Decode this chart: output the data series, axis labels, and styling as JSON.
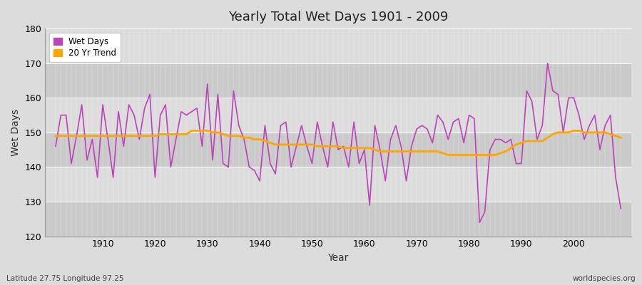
{
  "title": "Yearly Total Wet Days 1901 - 2009",
  "xlabel": "Year",
  "ylabel": "Wet Days",
  "lat_lon_label": "Latitude 27.75 Longitude 97.25",
  "watermark": "worldspecies.org",
  "wet_days_color": "#BB44BB",
  "trend_color": "#FFA500",
  "bg_color": "#DCDCDC",
  "band_light": "#DCDCDC",
  "band_dark": "#CACACA",
  "ylim": [
    120,
    180
  ],
  "yticks": [
    120,
    130,
    140,
    150,
    160,
    170,
    180
  ],
  "years": [
    1901,
    1902,
    1903,
    1904,
    1905,
    1906,
    1907,
    1908,
    1909,
    1910,
    1911,
    1912,
    1913,
    1914,
    1915,
    1916,
    1917,
    1918,
    1919,
    1920,
    1921,
    1922,
    1923,
    1924,
    1925,
    1926,
    1927,
    1928,
    1929,
    1930,
    1931,
    1932,
    1933,
    1934,
    1935,
    1936,
    1937,
    1938,
    1939,
    1940,
    1941,
    1942,
    1943,
    1944,
    1945,
    1946,
    1947,
    1948,
    1949,
    1950,
    1951,
    1952,
    1953,
    1954,
    1955,
    1956,
    1957,
    1958,
    1959,
    1960,
    1961,
    1962,
    1963,
    1964,
    1965,
    1966,
    1967,
    1968,
    1969,
    1970,
    1971,
    1972,
    1973,
    1974,
    1975,
    1976,
    1977,
    1978,
    1979,
    1980,
    1981,
    1982,
    1983,
    1984,
    1985,
    1986,
    1987,
    1988,
    1989,
    1990,
    1991,
    1992,
    1993,
    1994,
    1995,
    1996,
    1997,
    1998,
    1999,
    2000,
    2001,
    2002,
    2003,
    2004,
    2005,
    2006,
    2007,
    2008,
    2009
  ],
  "wet_days": [
    146,
    155,
    155,
    141,
    149,
    158,
    142,
    148,
    137,
    158,
    148,
    137,
    156,
    146,
    158,
    155,
    148,
    157,
    161,
    137,
    155,
    158,
    140,
    148,
    156,
    155,
    156,
    157,
    146,
    164,
    142,
    161,
    141,
    140,
    162,
    152,
    148,
    140,
    139,
    136,
    152,
    141,
    138,
    152,
    153,
    140,
    146,
    152,
    146,
    141,
    153,
    146,
    140,
    153,
    145,
    146,
    140,
    153,
    141,
    145,
    129,
    152,
    145,
    136,
    148,
    152,
    146,
    136,
    146,
    151,
    152,
    151,
    147,
    155,
    153,
    148,
    153,
    154,
    147,
    155,
    154,
    124,
    127,
    145,
    148,
    148,
    147,
    148,
    141,
    141,
    162,
    159,
    148,
    152,
    170,
    162,
    161,
    150,
    160,
    160,
    155,
    148,
    152,
    155,
    145,
    152,
    155,
    137,
    128
  ],
  "trend": [
    149.0,
    149.0,
    149.0,
    149.0,
    149.0,
    149.0,
    149.0,
    149.0,
    149.0,
    149.0,
    149.0,
    149.0,
    149.0,
    149.0,
    149.0,
    149.0,
    149.0,
    149.0,
    149.0,
    149.0,
    149.5,
    149.5,
    149.5,
    149.5,
    149.5,
    149.5,
    150.5,
    150.5,
    150.5,
    150.5,
    150.0,
    150.0,
    149.5,
    149.0,
    149.0,
    149.0,
    148.5,
    148.5,
    148.0,
    148.0,
    147.5,
    147.0,
    146.5,
    146.5,
    146.5,
    146.5,
    146.5,
    146.5,
    146.5,
    146.5,
    146.0,
    146.0,
    146.0,
    146.0,
    146.0,
    145.5,
    145.5,
    145.5,
    145.5,
    145.5,
    145.5,
    145.0,
    144.5,
    144.5,
    144.5,
    144.5,
    144.5,
    144.5,
    144.5,
    144.5,
    144.5,
    144.5,
    144.5,
    144.5,
    144.0,
    143.5,
    143.5,
    143.5,
    143.5,
    143.5,
    143.5,
    143.5,
    143.5,
    143.5,
    143.5,
    144.0,
    144.5,
    145.5,
    146.5,
    147.0,
    147.5,
    147.5,
    147.5,
    147.5,
    148.5,
    149.5,
    150.0,
    150.0,
    150.0,
    150.5,
    150.5,
    150.0,
    150.0,
    150.0,
    150.0,
    150.0,
    149.5,
    149.0,
    148.5
  ]
}
